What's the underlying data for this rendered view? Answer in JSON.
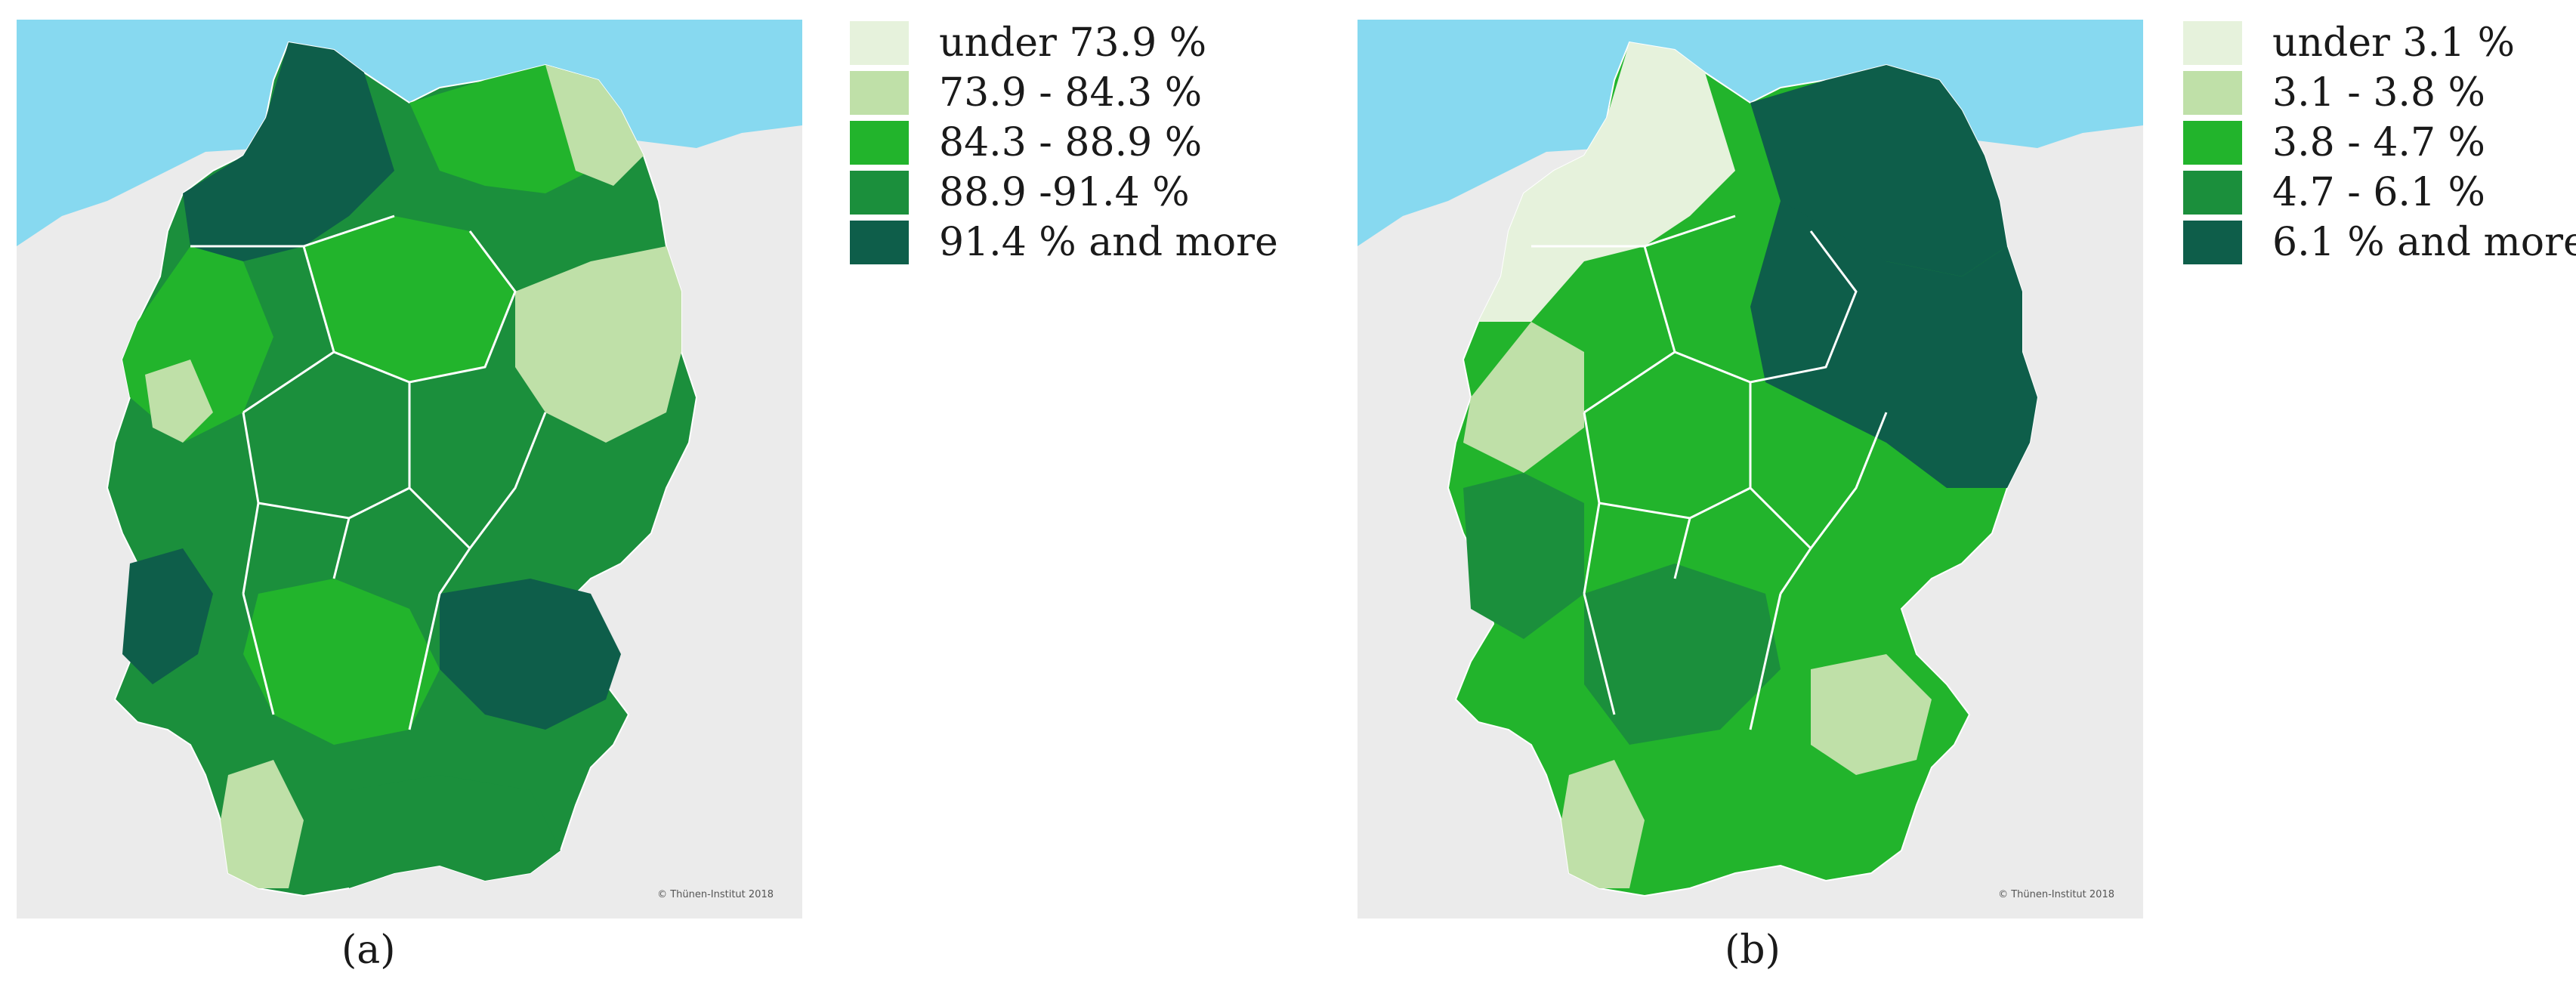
{
  "colors": {
    "sea": "#87d9f0",
    "land_bg": "#ebebeb",
    "border": "#ffffff",
    "class1": "#e6f2dc",
    "class2": "#bfe0a8",
    "class3": "#22b42c",
    "class4": "#1b8f3c",
    "class5": "#0e5e4a"
  },
  "panels": [
    {
      "caption": "(a)",
      "credit": "© Thünen-Institut 2018",
      "legend": [
        {
          "label": "under 73.9 %",
          "color": "#e6f2dc"
        },
        {
          "label": "73.9 - 84.3 %",
          "color": "#bfe0a8"
        },
        {
          "label": "84.3 - 88.9 %",
          "color": "#22b42c"
        },
        {
          "label": "88.9 -91.4 %",
          "color": "#1b8f3c"
        },
        {
          "label": "91.4 % and more",
          "color": "#0e5e4a"
        }
      ]
    },
    {
      "caption": "(b)",
      "credit": "© Thünen-Institut 2018",
      "legend": [
        {
          "label": "under 3.1 %",
          "color": "#e6f2dc"
        },
        {
          "label": "3.1 - 3.8 %",
          "color": "#bfe0a8"
        },
        {
          "label": "3.8 - 4.7 %",
          "color": "#22b42c"
        },
        {
          "label": "4.7 - 6.1 %",
          "color": "#1b8f3c"
        },
        {
          "label": "6.1 % and more",
          "color": "#0e5e4a"
        }
      ]
    }
  ]
}
